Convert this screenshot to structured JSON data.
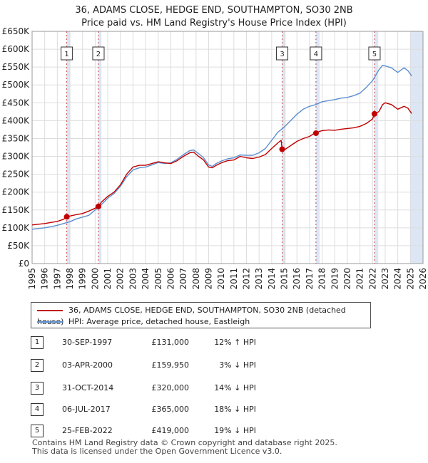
{
  "title_line1": "36, ADAMS CLOSE, HEDGE END, SOUTHAMPTON, SO30 2NB",
  "title_line2": "Price paid vs. HM Land Registry's House Price Index (HPI)",
  "colors": {
    "property": "#c00000",
    "hpi": "#5b8fd0",
    "band": "#dde6f4",
    "vline": "#d04040",
    "grid": "#dddddd"
  },
  "legend": {
    "property": "36, ADAMS CLOSE, HEDGE END, SOUTHAMPTON, SO30 2NB (detached house)",
    "hpi": "HPI: Average price, detached house, Eastleigh"
  },
  "sales": [
    {
      "num": "1",
      "date": "30-SEP-1997",
      "price": "£131,000",
      "hpi": "12% ↑ HPI"
    },
    {
      "num": "2",
      "date": "03-APR-2000",
      "price": "£159,950",
      "hpi": "3% ↓ HPI"
    },
    {
      "num": "3",
      "date": "31-OCT-2014",
      "price": "£320,000",
      "hpi": "14% ↓ HPI"
    },
    {
      "num": "4",
      "date": "06-JUL-2017",
      "price": "£365,000",
      "hpi": "18% ↓ HPI"
    },
    {
      "num": "5",
      "date": "25-FEB-2022",
      "price": "£419,000",
      "hpi": "19% ↓ HPI"
    }
  ],
  "footer_line1": "Contains HM Land Registry data © Crown copyright and database right 2025.",
  "footer_line2": "This data is licensed under the Open Government Licence v3.0.",
  "chart_data": {
    "type": "line",
    "title": "36, ADAMS CLOSE, HEDGE END, SOUTHAMPTON, SO30 2NB — Price paid vs. HM Land Registry's House Price Index (HPI)",
    "xlim": [
      1995,
      2026
    ],
    "ylim": [
      0,
      650000
    ],
    "x_ticks": [
      1995,
      1996,
      1997,
      1998,
      1999,
      2000,
      2001,
      2002,
      2003,
      2004,
      2005,
      2006,
      2007,
      2008,
      2009,
      2010,
      2011,
      2012,
      2013,
      2014,
      2015,
      2016,
      2017,
      2018,
      2019,
      2020,
      2021,
      2022,
      2023,
      2024,
      2025,
      2026
    ],
    "y_ticks": [
      0,
      50000,
      100000,
      150000,
      200000,
      250000,
      300000,
      350000,
      400000,
      450000,
      500000,
      550000,
      600000,
      650000
    ],
    "y_tick_labels": [
      "£0",
      "£50K",
      "£100K",
      "£150K",
      "£200K",
      "£250K",
      "£300K",
      "£350K",
      "£400K",
      "£450K",
      "£500K",
      "£550K",
      "£600K",
      "£650K"
    ],
    "shaded_bands": [
      [
        1997.75,
        1998.0
      ],
      [
        2000.26,
        2000.5
      ],
      [
        2014.83,
        2015.1
      ],
      [
        2017.51,
        2017.8
      ],
      [
        2022.15,
        2022.45
      ],
      [
        2025.0,
        2026.0
      ]
    ],
    "markers": [
      {
        "label": "1",
        "x": 1997.75,
        "y": 131000
      },
      {
        "label": "2",
        "x": 2000.26,
        "y": 159950
      },
      {
        "label": "3",
        "x": 2014.83,
        "y": 320000
      },
      {
        "label": "4",
        "x": 2017.51,
        "y": 365000
      },
      {
        "label": "5",
        "x": 2022.15,
        "y": 419000
      }
    ],
    "series": [
      {
        "name": "36, ADAMS CLOSE, HEDGE END, SOUTHAMPTON, SO30 2NB (detached house)",
        "x": [
          1995,
          1995.5,
          1996,
          1996.5,
          1997,
          1997.5,
          1997.75,
          1998,
          1998.5,
          1999,
          1999.5,
          2000,
          2000.26,
          2000.5,
          2001,
          2001.5,
          2002,
          2002.5,
          2003,
          2003.5,
          2004,
          2004.5,
          2005,
          2005.5,
          2006,
          2006.5,
          2007,
          2007.5,
          2007.8,
          2008.2,
          2008.6,
          2009,
          2009.3,
          2009.6,
          2010,
          2010.5,
          2011,
          2011.5,
          2012,
          2012.5,
          2013,
          2013.5,
          2014,
          2014.5,
          2014.75,
          2014.83,
          2015,
          2015.5,
          2016,
          2016.5,
          2017,
          2017.4,
          2017.51,
          2017.8,
          2018,
          2018.5,
          2019,
          2019.5,
          2020,
          2020.5,
          2021,
          2021.5,
          2022,
          2022.15,
          2022.5,
          2022.8,
          2023,
          2023.5,
          2024,
          2024.5,
          2024.8,
          2025.1
        ],
        "values": [
          108000,
          110000,
          112000,
          115000,
          118000,
          124000,
          131000,
          133000,
          137000,
          140000,
          147000,
          155000,
          159950,
          172000,
          188000,
          200000,
          220000,
          250000,
          270000,
          275000,
          275000,
          280000,
          285000,
          282000,
          280000,
          288000,
          300000,
          310000,
          312000,
          300000,
          290000,
          270000,
          268000,
          275000,
          282000,
          288000,
          290000,
          300000,
          296000,
          294000,
          298000,
          305000,
          322000,
          338000,
          345000,
          320000,
          318000,
          330000,
          342000,
          350000,
          356000,
          365000,
          365000,
          370000,
          372000,
          374000,
          373000,
          376000,
          378000,
          380000,
          384000,
          392000,
          405000,
          419000,
          425000,
          445000,
          450000,
          445000,
          432000,
          440000,
          435000,
          420000
        ]
      },
      {
        "name": "HPI: Average price, detached house, Eastleigh",
        "x": [
          1995,
          1995.5,
          1996,
          1996.5,
          1997,
          1997.5,
          1998,
          1998.5,
          1999,
          1999.5,
          2000,
          2000.5,
          2001,
          2001.5,
          2002,
          2002.5,
          2003,
          2003.5,
          2004,
          2004.5,
          2005,
          2005.5,
          2006,
          2006.5,
          2007,
          2007.5,
          2007.8,
          2008.2,
          2008.6,
          2009,
          2009.3,
          2009.6,
          2010,
          2010.5,
          2011,
          2011.5,
          2012,
          2012.5,
          2013,
          2013.5,
          2014,
          2014.5,
          2015,
          2015.5,
          2016,
          2016.5,
          2017,
          2017.5,
          2018,
          2018.5,
          2019,
          2019.5,
          2020,
          2020.5,
          2021,
          2021.5,
          2022,
          2022.5,
          2022.8,
          2023,
          2023.5,
          2024,
          2024.5,
          2024.8,
          2025.1
        ],
        "values": [
          96000,
          98000,
          100000,
          103000,
          107000,
          112000,
          117000,
          125000,
          130000,
          135000,
          150000,
          165000,
          183000,
          196000,
          216000,
          243000,
          262000,
          268000,
          270000,
          276000,
          283000,
          280000,
          282000,
          292000,
          305000,
          316000,
          318000,
          308000,
          296000,
          276000,
          272000,
          280000,
          287000,
          293000,
          296000,
          304000,
          303000,
          303000,
          310000,
          322000,
          345000,
          368000,
          382000,
          400000,
          418000,
          432000,
          440000,
          445000,
          453000,
          456000,
          459000,
          463000,
          465000,
          470000,
          477000,
          493000,
          512000,
          542000,
          555000,
          553000,
          548000,
          535000,
          548000,
          540000,
          525000
        ]
      }
    ]
  }
}
